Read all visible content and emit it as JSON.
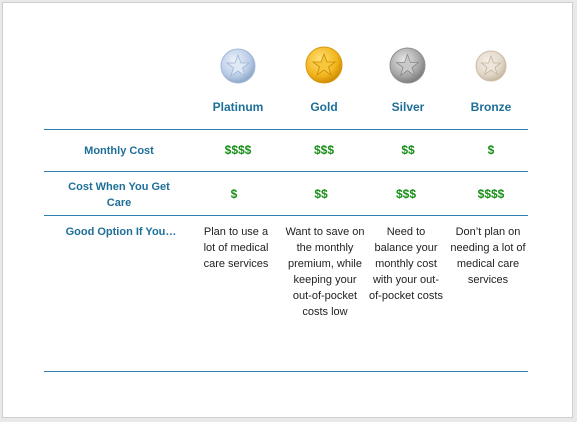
{
  "colors": {
    "header_blue": "#1e6f98",
    "rule_blue": "#2e7fb0",
    "cost_green": "#1a8f1a",
    "body_text": "#222222"
  },
  "tiers": [
    {
      "name": "Platinum",
      "icon": "star-medal-icon",
      "medal_color": "#b9cce6"
    },
    {
      "name": "Gold",
      "icon": "star-medal-icon",
      "medal_color": "#f2b51c"
    },
    {
      "name": "Silver",
      "icon": "star-medal-icon",
      "medal_color": "#a6a6a6"
    },
    {
      "name": "Bronze",
      "icon": "star-medal-icon",
      "medal_color": "#e2d7c8"
    }
  ],
  "rows": {
    "monthly_cost": {
      "label": "Monthly Cost",
      "values": [
        "$$$$",
        "$$$",
        "$$",
        "$"
      ]
    },
    "cost_when_care": {
      "label": "Cost When You Get Care",
      "values": [
        "$",
        "$$",
        "$$$",
        "$$$$"
      ]
    },
    "good_option": {
      "label": "Good Option If You…",
      "values": [
        "Plan to use a lot of medical care services",
        "Want to save on the monthly premium, while keeping your out-of-pocket costs low",
        "Need to balance your monthly cost with your out-of-pocket costs",
        "Don’t plan on needing a lot of medical care services"
      ]
    }
  }
}
